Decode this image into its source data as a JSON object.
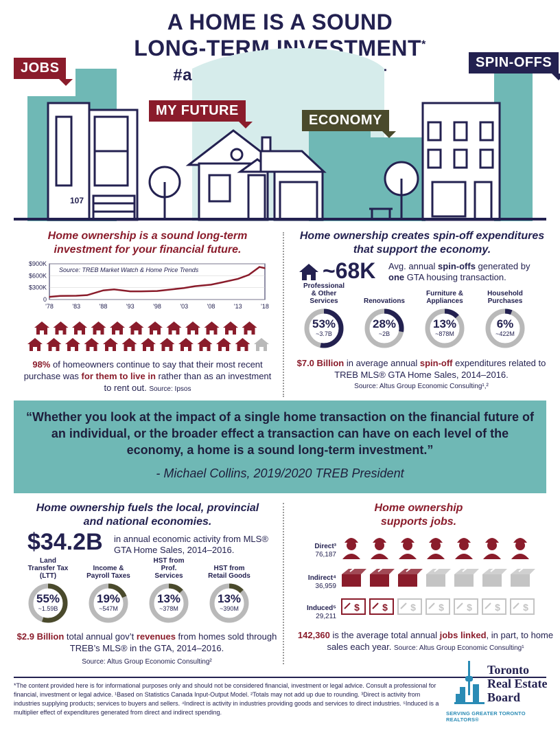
{
  "header": {
    "title_line1": "A HOME IS A SOUND",
    "title_line2": "LONG-TERM INVESTMENT",
    "title_star": "*",
    "hashtag": "#aHOMEisanINVESTMENT",
    "tags": {
      "jobs": "JOBS",
      "my_future": "MY FUTURE",
      "economy": "ECONOMY",
      "spinoffs": "SPIN-OFFS"
    },
    "house_number": "107"
  },
  "future": {
    "heading": "Home ownership is a sound long-term investment for your financial future.",
    "chart_source": "Source: TREB Market Watch & Home Price Trends",
    "stat_pct": "98%",
    "stat_text1": " of homeowners continue to say that their most recent purchase was ",
    "stat_highlight": "for them to live in",
    "stat_text2": " rather than as an investment to rent out.",
    "stat_source": "Source: Ipsos"
  },
  "chart_data": {
    "type": "line",
    "title": "",
    "x": [
      1978,
      1980,
      1983,
      1985,
      1988,
      1990,
      1993,
      1995,
      1998,
      2000,
      2003,
      2005,
      2008,
      2010,
      2013,
      2015,
      2017,
      2018
    ],
    "values": [
      68000,
      90000,
      95000,
      110000,
      230000,
      255000,
      205000,
      205000,
      215000,
      245000,
      290000,
      335000,
      375000,
      430000,
      520000,
      620000,
      820000,
      790000
    ],
    "xticks": [
      "'78",
      "'83",
      "'88",
      "'93",
      "'98",
      "'03",
      "'08",
      "'13",
      "'18"
    ],
    "yticks": [
      "0",
      "$300K",
      "$600K",
      "$900K"
    ],
    "ylim": [
      0,
      900000
    ],
    "color": "#8a1c2b"
  },
  "spinoffs": {
    "heading": "Home ownership creates spin-off expenditures that support the economy.",
    "big": "~68K",
    "big_text1": "Avg. annual ",
    "big_bold1": "spin-offs",
    "big_text2": " generated by ",
    "big_bold2": "one",
    "big_text3": " GTA housing transaction.",
    "donuts": [
      {
        "label": "Professional & Other Services",
        "pct": "53%",
        "amt": "~3.7B",
        "value": 53
      },
      {
        "label": "Renovations",
        "pct": "28%",
        "amt": "~2B",
        "value": 28
      },
      {
        "label": "Furniture & Appliances",
        "pct": "13%",
        "amt": "~878M",
        "value": 13
      },
      {
        "label": "Household Purchases",
        "pct": "6%",
        "amt": "~422M",
        "value": 6
      }
    ],
    "total_bold": "$7.0 Billion",
    "total_text1": " in average annual ",
    "total_bold2": "spin-off",
    "total_text2": " expenditures related to TREB MLS® GTA Home Sales, 2014–2016.",
    "source": "Source: Altus Group Economic Consulting¹,²"
  },
  "quote": {
    "text": "“Whether you look at the impact of a single home transaction on the financial future of an individual, or the broader effect a transaction can have on each level of the economy, a home is a sound long-term investment.”",
    "attribution": "- Michael Collins, 2019/2020 TREB President"
  },
  "economies": {
    "heading": "Home ownership fuels the local, provincial and national economies.",
    "big": "$34.2B",
    "big_text": "in annual economic activity from MLS® GTA Home Sales, 2014–2016.",
    "donuts": [
      {
        "label": "Land Transfer Tax (LTT)",
        "pct": "55%",
        "amt": "~1.59B",
        "value": 55
      },
      {
        "label": "Income & Payroll Taxes",
        "pct": "19%",
        "amt": "~547M",
        "value": 19
      },
      {
        "label": "HST from Prof. Services",
        "pct": "13%",
        "amt": "~378M",
        "value": 13
      },
      {
        "label": "HST from Retail Goods",
        "pct": "13%",
        "amt": "~390M",
        "value": 13
      }
    ],
    "total_bold": "$2.9 Billion",
    "total_text1": " total annual gov’t ",
    "total_bold2": "revenues",
    "total_text2": " from homes sold through TREB’s MLS® in the GTA, 2014–2016.",
    "source": "Source: Altus Group Economic Consulting²"
  },
  "jobs": {
    "heading": "Home ownership supports jobs.",
    "direct_label": "Direct³",
    "direct_value": "76,187",
    "indirect_label": "Indirect⁴",
    "indirect_value": "36,959",
    "induced_label": "Induced⁵",
    "induced_value": "29,211",
    "direct_fill": 1.0,
    "indirect_fill": 0.43,
    "induced_fill": 0.34,
    "total_bold": "142,360",
    "total_text1": " is the average total annual ",
    "total_bold2": "jobs linked",
    "total_text2": ", in part, to home sales each year.",
    "source": "Source: Altus Group Economic Consulting¹"
  },
  "footer": {
    "note": "*The content provided here is for informational purposes only and should not be considered financial, investment or legal advice. Consult a professional for financial, investment or legal advice. ¹Based on Statistics Canada Input-Output Model. ²Totals may not add up due to rounding. ³Direct is activity from industries supplying products; services to buyers and sellers. ⁴Indirect is activity in industries providing goods and services to direct industries. ⁵Induced is a multiplier effect of expenditures generated from direct and indirect spending.",
    "logo_line1": "Toronto",
    "logo_line2": "Real Estate",
    "logo_line3": "Board",
    "logo_tagline": "SERVING GREATER TORONTO REALTORS®"
  },
  "colors": {
    "navy": "#232150",
    "maroon": "#8a1c2b",
    "teal": "#6fb8b5",
    "olive": "#4a4a2c",
    "gray": "#b9b9b9"
  }
}
